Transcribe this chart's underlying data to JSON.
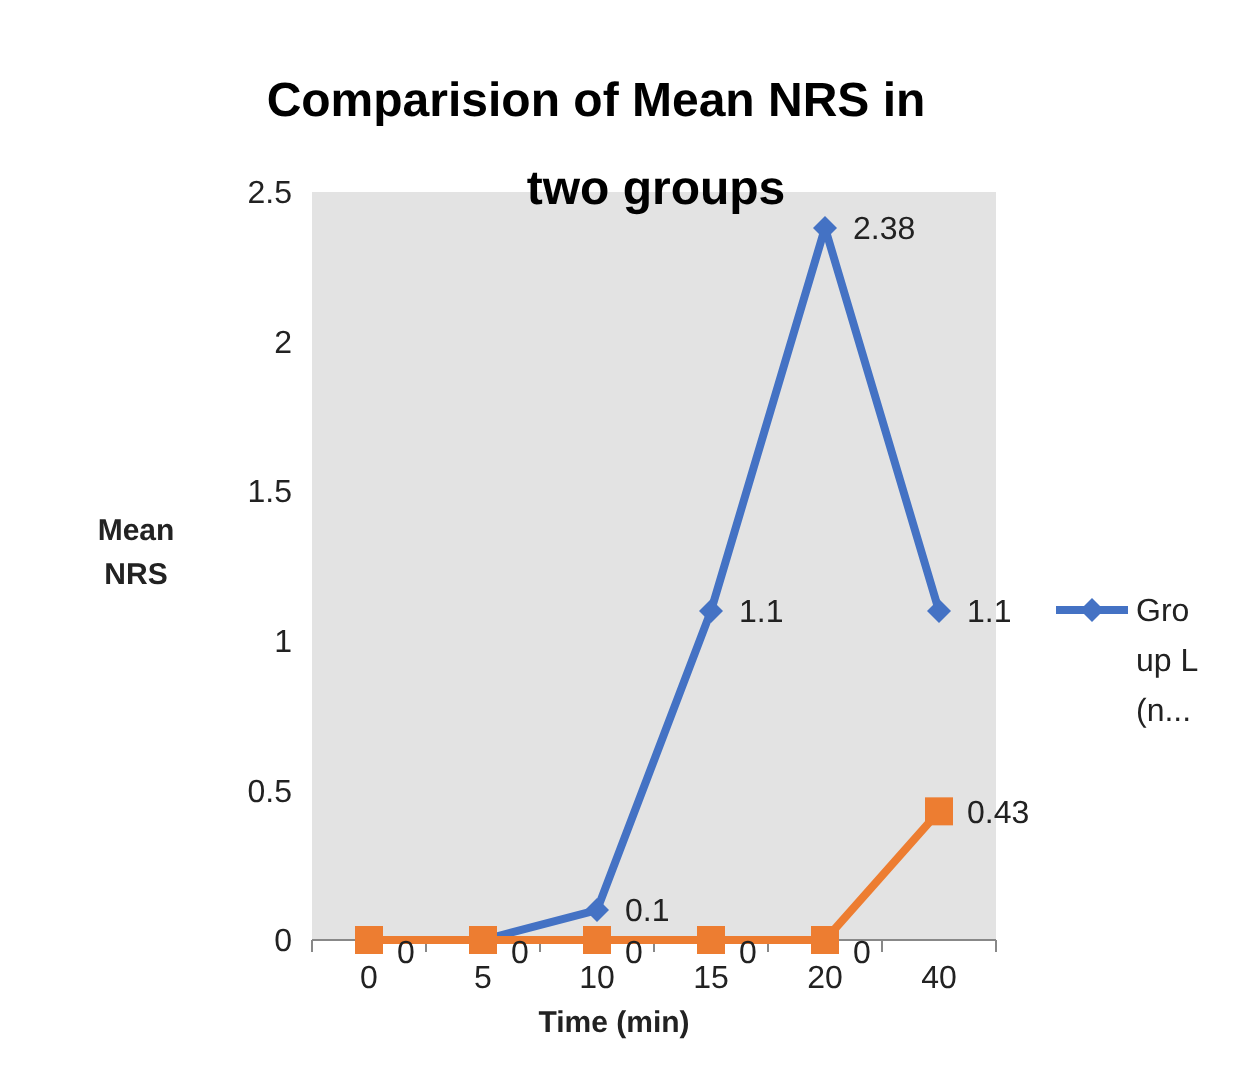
{
  "chart_data": {
    "type": "line",
    "title": "Comparision of Mean NRS in two groups",
    "xlabel": "Time (min)",
    "ylabel": "Mean NRS",
    "categories": [
      "0",
      "5",
      "10",
      "15",
      "20",
      "40"
    ],
    "series": [
      {
        "name": "Group L (n...",
        "color": "#4472c4",
        "marker": "diamond",
        "values": [
          0,
          0,
          0.1,
          1.1,
          2.38,
          1.1
        ],
        "value_labels": [
          null,
          null,
          "0.1",
          "1.1",
          "2.38",
          "1.1"
        ]
      },
      {
        "color": "#ed7d31",
        "marker": "square",
        "values": [
          0,
          0,
          0,
          0,
          0,
          0.43
        ],
        "value_labels": [
          "0",
          "0",
          "0",
          "0",
          "0",
          "0.43"
        ]
      }
    ],
    "ylim": [
      0,
      2.5
    ],
    "yticks": [
      0,
      0.5,
      1,
      1.5,
      2,
      2.5
    ],
    "legend": "right",
    "grid": false
  }
}
